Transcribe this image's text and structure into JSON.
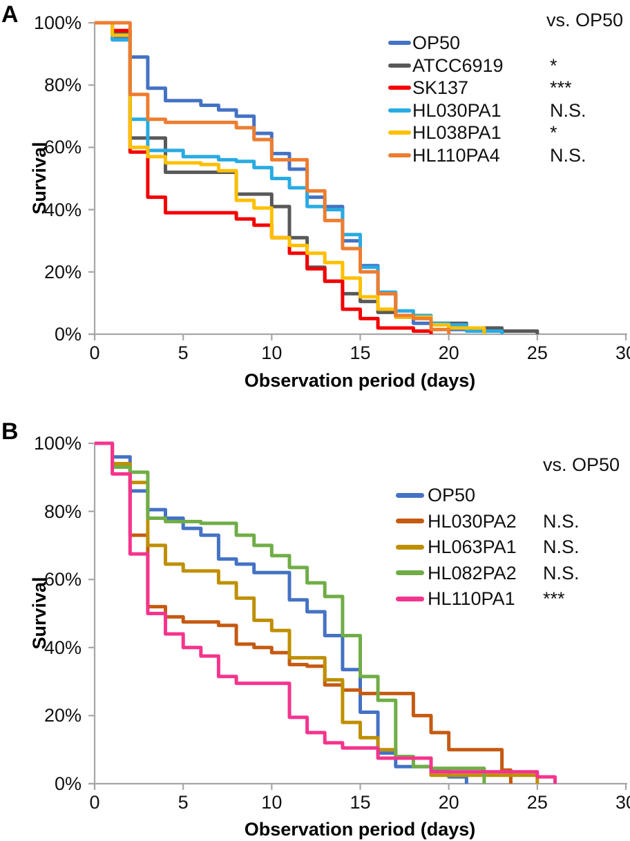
{
  "chart_data": [
    {
      "type": "line",
      "step": true,
      "panel_label": "A",
      "legend_header": "vs. OP50",
      "ylabel": "Survival",
      "xlabel": "Observation period (days)",
      "xlim": [
        0,
        30
      ],
      "ylim": [
        0,
        100
      ],
      "xticks": [
        0,
        5,
        10,
        15,
        20,
        25,
        30
      ],
      "ytick_labels": [
        "100%",
        "80%",
        "60%",
        "40%",
        "20%",
        "0%"
      ],
      "legend_position": "upper right",
      "grid": false,
      "series": [
        {
          "name": "OP50",
          "color": "#4472C4",
          "significance": "",
          "points": [
            [
              0,
              100
            ],
            [
              1,
              95
            ],
            [
              2,
              89
            ],
            [
              3,
              79
            ],
            [
              4,
              75
            ],
            [
              6,
              73.5
            ],
            [
              7,
              72
            ],
            [
              8,
              70
            ],
            [
              9,
              64.5
            ],
            [
              10,
              58
            ],
            [
              11,
              53
            ],
            [
              12,
              44
            ],
            [
              13,
              41
            ],
            [
              14,
              30
            ],
            [
              15,
              22
            ],
            [
              16,
              13
            ],
            [
              17,
              5.5
            ],
            [
              18,
              3.5
            ],
            [
              20,
              1.5
            ],
            [
              22,
              0
            ]
          ]
        },
        {
          "name": "ATCC6919",
          "color": "#595959",
          "significance": "*",
          "points": [
            [
              0,
              100
            ],
            [
              1,
              97
            ],
            [
              2,
              63
            ],
            [
              4,
              52
            ],
            [
              8,
              45
            ],
            [
              10,
              41
            ],
            [
              11,
              31
            ],
            [
              12,
              21.5
            ],
            [
              13,
              17
            ],
            [
              14,
              13
            ],
            [
              15,
              10.5
            ],
            [
              16,
              7
            ],
            [
              17,
              5.5
            ],
            [
              19,
              3.5
            ],
            [
              21,
              2
            ],
            [
              23,
              1
            ],
            [
              25,
              0
            ]
          ]
        },
        {
          "name": "SK137",
          "color": "#F40000",
          "significance": "***",
          "points": [
            [
              0,
              100
            ],
            [
              1,
              97.5
            ],
            [
              2,
              58.5
            ],
            [
              3,
              44
            ],
            [
              4,
              39
            ],
            [
              8,
              37
            ],
            [
              9,
              35
            ],
            [
              10,
              31
            ],
            [
              11,
              26
            ],
            [
              12,
              21
            ],
            [
              13,
              17
            ],
            [
              14,
              8
            ],
            [
              15,
              5
            ],
            [
              16,
              2
            ],
            [
              18,
              1
            ],
            [
              19,
              0
            ]
          ]
        },
        {
          "name": "HL030PA1",
          "color": "#29ABE2",
          "significance": "N.S.",
          "points": [
            [
              0,
              100
            ],
            [
              1,
              94.5
            ],
            [
              2,
              69
            ],
            [
              3,
              59
            ],
            [
              5,
              57
            ],
            [
              7,
              56
            ],
            [
              8,
              55.5
            ],
            [
              9,
              53.5
            ],
            [
              10,
              50
            ],
            [
              11,
              47
            ],
            [
              12,
              41
            ],
            [
              13,
              40
            ],
            [
              14,
              32
            ],
            [
              15,
              21.5
            ],
            [
              16,
              13.5
            ],
            [
              17,
              7.5
            ],
            [
              18,
              6
            ],
            [
              19,
              3.5
            ],
            [
              20,
              3
            ],
            [
              21,
              1
            ],
            [
              23,
              0
            ]
          ]
        },
        {
          "name": "HL038PA1",
          "color": "#FFC000",
          "significance": "*",
          "points": [
            [
              0,
              100
            ],
            [
              1,
              96
            ],
            [
              2,
              60
            ],
            [
              3,
              57
            ],
            [
              4,
              55
            ],
            [
              6,
              54.5
            ],
            [
              7,
              52.5
            ],
            [
              8,
              43
            ],
            [
              9,
              40.5
            ],
            [
              10,
              31
            ],
            [
              11,
              28.5
            ],
            [
              12,
              26
            ],
            [
              13,
              23
            ],
            [
              14,
              18
            ],
            [
              15,
              12
            ],
            [
              16,
              8
            ],
            [
              17,
              5.5
            ],
            [
              19,
              3
            ],
            [
              20,
              2
            ],
            [
              22,
              0
            ]
          ]
        },
        {
          "name": "HL110PA4",
          "color": "#ED7D31",
          "significance": "N.S.",
          "points": [
            [
              0,
              100
            ],
            [
              2,
              77
            ],
            [
              3,
              69
            ],
            [
              4,
              68
            ],
            [
              8,
              66.3
            ],
            [
              9,
              62.5
            ],
            [
              10,
              56
            ],
            [
              12,
              46
            ],
            [
              13,
              36.5
            ],
            [
              14,
              27.5
            ],
            [
              15,
              20
            ],
            [
              16,
              13
            ],
            [
              17,
              6
            ],
            [
              18,
              5
            ],
            [
              19,
              1.5
            ],
            [
              20,
              0
            ]
          ]
        }
      ]
    },
    {
      "type": "line",
      "step": true,
      "panel_label": "B",
      "legend_header": "vs. OP50",
      "ylabel": "Survival",
      "xlabel": "Observation period (days)",
      "xlim": [
        0,
        30
      ],
      "ylim": [
        0,
        100
      ],
      "xticks": [
        0,
        5,
        10,
        15,
        20,
        25,
        30
      ],
      "ytick_labels": [
        "100%",
        "80%",
        "60%",
        "40%",
        "20%",
        "0%"
      ],
      "legend_position": "upper right",
      "grid": false,
      "series": [
        {
          "name": "OP50",
          "color": "#4472C4",
          "significance": "",
          "points": [
            [
              0,
              100
            ],
            [
              1,
              96
            ],
            [
              2,
              86
            ],
            [
              3,
              80.5
            ],
            [
              4,
              78
            ],
            [
              5,
              75
            ],
            [
              6,
              73
            ],
            [
              7,
              66
            ],
            [
              8,
              64.5
            ],
            [
              9,
              62
            ],
            [
              11,
              54
            ],
            [
              12,
              50.5
            ],
            [
              13,
              43.5
            ],
            [
              14,
              33.5
            ],
            [
              15,
              21
            ],
            [
              16,
              9
            ],
            [
              17,
              5
            ],
            [
              19,
              4
            ],
            [
              20,
              2
            ],
            [
              21,
              0
            ]
          ]
        },
        {
          "name": "HL030PA2",
          "color": "#C55A11",
          "significance": "N.S.",
          "points": [
            [
              0,
              100
            ],
            [
              1,
              94
            ],
            [
              2,
              73
            ],
            [
              3,
              52
            ],
            [
              4,
              49
            ],
            [
              5,
              47.5
            ],
            [
              7,
              46.5
            ],
            [
              8,
              41
            ],
            [
              9,
              40
            ],
            [
              10,
              38.5
            ],
            [
              11,
              35
            ],
            [
              12,
              34.5
            ],
            [
              13,
              29
            ],
            [
              14,
              27.5
            ],
            [
              15,
              26.5
            ],
            [
              18,
              20
            ],
            [
              19,
              15
            ],
            [
              20,
              10
            ],
            [
              23,
              4
            ],
            [
              23.5,
              0
            ]
          ]
        },
        {
          "name": "HL063PA1",
          "color": "#BF8F00",
          "significance": "N.S.",
          "points": [
            [
              0,
              100
            ],
            [
              1,
              94
            ],
            [
              2,
              88.5
            ],
            [
              3,
              70
            ],
            [
              4,
              64.5
            ],
            [
              5,
              62.5
            ],
            [
              7,
              59
            ],
            [
              8,
              54.5
            ],
            [
              9,
              48
            ],
            [
              10,
              45
            ],
            [
              11,
              37
            ],
            [
              13,
              30.5
            ],
            [
              14,
              18
            ],
            [
              15,
              13.5
            ],
            [
              16,
              10
            ],
            [
              17,
              7.5
            ],
            [
              19,
              2.5
            ],
            [
              25,
              0
            ]
          ]
        },
        {
          "name": "HL082PA2",
          "color": "#70AD47",
          "significance": "N.S.",
          "points": [
            [
              0,
              100
            ],
            [
              1,
              93
            ],
            [
              2,
              91.5
            ],
            [
              3,
              78
            ],
            [
              4,
              77
            ],
            [
              6,
              76.5
            ],
            [
              8,
              73
            ],
            [
              9,
              70
            ],
            [
              10,
              67
            ],
            [
              11,
              63.5
            ],
            [
              12,
              59
            ],
            [
              13,
              55
            ],
            [
              14,
              43.5
            ],
            [
              15,
              31.5
            ],
            [
              16,
              24.5
            ],
            [
              17,
              8
            ],
            [
              18,
              5
            ],
            [
              19,
              4.5
            ],
            [
              22,
              0
            ]
          ]
        },
        {
          "name": "HL110PA1",
          "color": "#F4348D",
          "significance": "***",
          "points": [
            [
              0,
              100
            ],
            [
              1,
              91
            ],
            [
              2,
              67.5
            ],
            [
              3,
              50
            ],
            [
              4,
              44
            ],
            [
              5,
              40
            ],
            [
              6,
              37.5
            ],
            [
              7,
              31.5
            ],
            [
              8,
              29.5
            ],
            [
              11,
              19.5
            ],
            [
              12,
              15
            ],
            [
              13,
              12
            ],
            [
              14,
              10.5
            ],
            [
              16,
              7.5
            ],
            [
              19,
              3.5
            ],
            [
              25,
              2
            ],
            [
              26,
              0
            ]
          ]
        }
      ]
    }
  ]
}
